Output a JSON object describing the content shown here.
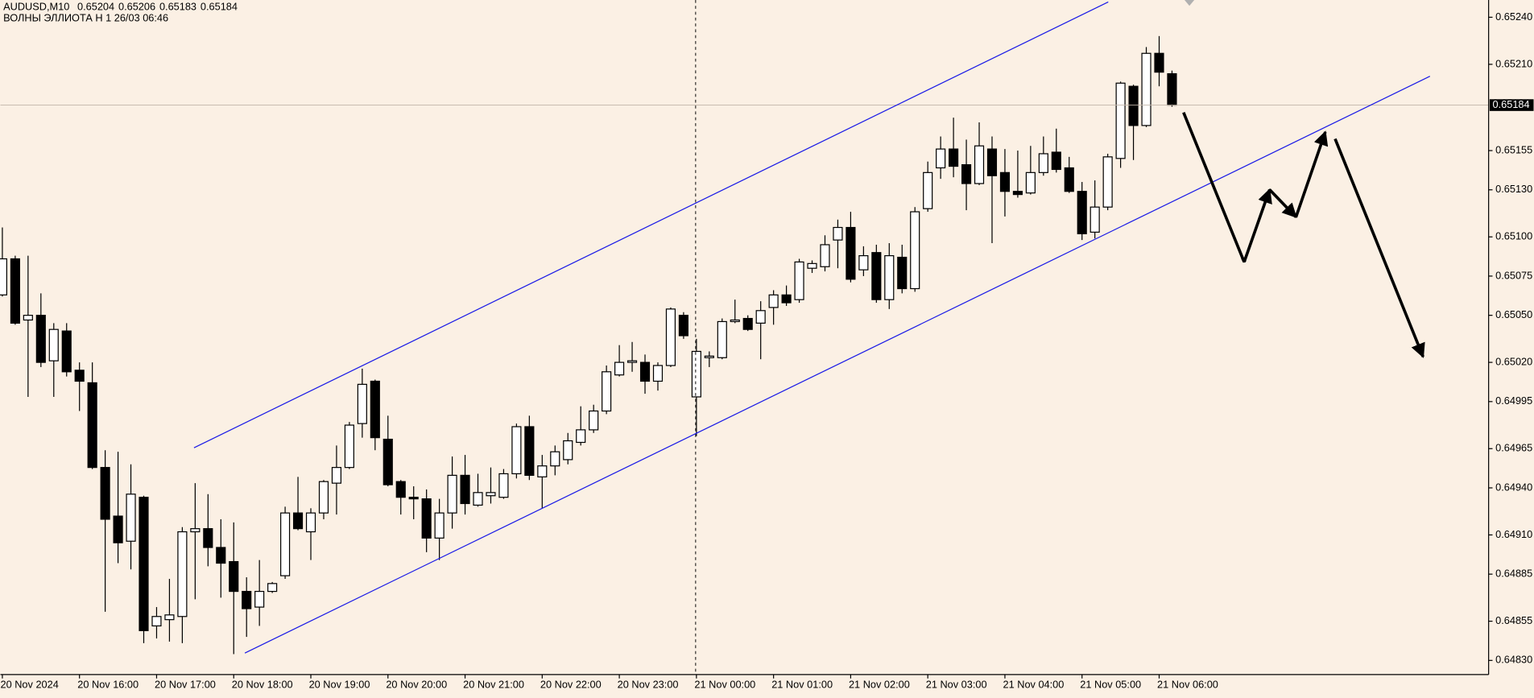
{
  "chart_data": {
    "type": "candlestick",
    "title": "AUDUSD,M10",
    "subtitle": "ВОЛНЫ ЭЛЛИОТА H 1 26/03 06:46",
    "categories": [
      "20 Nov 2024",
      null,
      null,
      null,
      null,
      null,
      "20 Nov 16:00",
      null,
      null,
      null,
      null,
      null,
      "20 Nov 17:00",
      null,
      null,
      null,
      null,
      null,
      "20 Nov 18:00",
      null,
      null,
      null,
      null,
      null,
      "20 Nov 19:00",
      null,
      null,
      null,
      null,
      null,
      "20 Nov 20:00",
      null,
      null,
      null,
      null,
      null,
      "20 Nov 21:00",
      null,
      null,
      null,
      null,
      null,
      "20 Nov 22:00",
      null,
      null,
      null,
      null,
      null,
      "20 Nov 23:00",
      null,
      null,
      null,
      null,
      null,
      "21 Nov 00:00",
      null,
      null,
      null,
      null,
      null,
      "21 Nov 01:00",
      null,
      null,
      null,
      null,
      null,
      "21 Nov 02:00",
      null,
      null,
      null,
      null,
      null,
      "21 Nov 03:00",
      null,
      null,
      null,
      null,
      null,
      "21 Nov 04:00",
      null,
      null,
      null,
      null,
      null,
      "21 Nov 05:00",
      null,
      null,
      null,
      null,
      null,
      "21 Nov 06:00",
      null
    ],
    "open": [
      0.65063,
      0.65086,
      0.65047,
      0.6505,
      0.65021,
      0.6504,
      0.65015,
      0.65007,
      0.64953,
      0.64922,
      0.64906,
      0.64934,
      0.64852,
      0.64856,
      0.64858,
      0.64912,
      0.64914,
      0.64902,
      0.64893,
      0.64874,
      0.64864,
      0.64874,
      0.64884,
      0.64924,
      0.64912,
      0.64924,
      0.64943,
      0.64953,
      0.64981,
      0.65008,
      0.64971,
      0.64944,
      0.64934,
      0.64933,
      0.64908,
      0.64924,
      0.64948,
      0.64929,
      0.64935,
      0.64934,
      0.64949,
      0.64979,
      0.64947,
      0.64954,
      0.64958,
      0.64969,
      0.64977,
      0.64989,
      0.65012,
      0.6502,
      0.6502,
      0.65008,
      0.65018,
      0.6505,
      0.64998,
      0.65023,
      0.65023,
      0.65046,
      0.65048,
      0.65045,
      0.65055,
      0.65063,
      0.6506,
      0.6508,
      0.65081,
      0.65098,
      0.65106,
      0.65079,
      0.6509,
      0.6506,
      0.65087,
      0.65067,
      0.65118,
      0.65144,
      0.65156,
      0.65146,
      0.65134,
      0.65156,
      0.65141,
      0.65129,
      0.65128,
      0.65141,
      0.65154,
      0.65144,
      0.65129,
      0.65103,
      0.65119,
      0.6515,
      0.65196,
      0.65171,
      0.65217,
      0.65204
    ],
    "high": [
      0.65106,
      0.65088,
      0.65088,
      0.65064,
      0.65045,
      0.65045,
      0.6502,
      0.6502,
      0.64964,
      0.64963,
      0.64955,
      0.64935,
      0.64864,
      0.64882,
      0.64915,
      0.64943,
      0.64936,
      0.6492,
      0.64918,
      0.64883,
      0.64894,
      0.6488,
      0.64928,
      0.64947,
      0.64927,
      0.64945,
      0.64967,
      0.64982,
      0.65016,
      0.65009,
      0.64986,
      0.64945,
      0.64941,
      0.64939,
      0.64933,
      0.6496,
      0.64961,
      0.64949,
      0.64953,
      0.64952,
      0.64981,
      0.64986,
      0.64961,
      0.64967,
      0.64975,
      0.64992,
      0.64993,
      0.65018,
      0.65031,
      0.65033,
      0.65025,
      0.6502,
      0.65055,
      0.65052,
      0.65035,
      0.65027,
      0.65048,
      0.6506,
      0.6505,
      0.65059,
      0.65066,
      0.65069,
      0.65086,
      0.65085,
      0.65101,
      0.65111,
      0.65116,
      0.65094,
      0.65095,
      0.65096,
      0.65095,
      0.65119,
      0.65148,
      0.65164,
      0.65176,
      0.65162,
      0.65173,
      0.65164,
      0.65156,
      0.65155,
      0.65158,
      0.65164,
      0.65169,
      0.65151,
      0.65135,
      0.65136,
      0.65153,
      0.65199,
      0.65197,
      0.65221,
      0.65228,
      0.65206
    ],
    "low": [
      0.65062,
      0.65044,
      0.64998,
      0.65017,
      0.64998,
      0.65011,
      0.64989,
      0.64952,
      0.64861,
      0.64892,
      0.64888,
      0.64841,
      0.64844,
      0.64842,
      0.64841,
      0.64869,
      0.6489,
      0.6487,
      0.64834,
      0.64845,
      0.64852,
      0.64873,
      0.64882,
      0.64913,
      0.64894,
      0.6492,
      0.64923,
      0.64952,
      0.64972,
      0.64964,
      0.64941,
      0.64923,
      0.6492,
      0.64899,
      0.64894,
      0.64914,
      0.64923,
      0.64928,
      0.6493,
      0.64933,
      0.64946,
      0.64945,
      0.64927,
      0.64948,
      0.64955,
      0.64967,
      0.64975,
      0.64987,
      0.65011,
      0.65014,
      0.65,
      0.65002,
      0.65017,
      0.65035,
      0.64973,
      0.65017,
      0.65022,
      0.65045,
      0.6504,
      0.65022,
      0.65044,
      0.65056,
      0.65058,
      0.65077,
      0.65078,
      0.6508,
      0.65071,
      0.65075,
      0.65058,
      0.65054,
      0.65064,
      0.65065,
      0.65116,
      0.65137,
      0.65138,
      0.65117,
      0.65133,
      0.65096,
      0.65113,
      0.65125,
      0.65127,
      0.65139,
      0.65141,
      0.65128,
      0.65098,
      0.65099,
      0.65117,
      0.65144,
      0.65149,
      0.6517,
      0.65196,
      0.65183
    ],
    "close": [
      0.65086,
      0.65045,
      0.6505,
      0.6502,
      0.65041,
      0.65014,
      0.65008,
      0.64953,
      0.6492,
      0.64905,
      0.64936,
      0.64849,
      0.64858,
      0.64859,
      0.64912,
      0.64914,
      0.64902,
      0.64892,
      0.64874,
      0.64863,
      0.64874,
      0.64879,
      0.64924,
      0.64914,
      0.64924,
      0.64944,
      0.64953,
      0.6498,
      0.65006,
      0.64972,
      0.64942,
      0.64934,
      0.64933,
      0.64908,
      0.64924,
      0.64948,
      0.6493,
      0.64937,
      0.64937,
      0.64949,
      0.64979,
      0.64948,
      0.64954,
      0.64963,
      0.6497,
      0.64977,
      0.64989,
      0.65014,
      0.6502,
      0.65021,
      0.65008,
      0.65018,
      0.65054,
      0.65037,
      0.65027,
      0.65024,
      0.65046,
      0.65047,
      0.65041,
      0.65053,
      0.65063,
      0.65058,
      0.65084,
      0.65083,
      0.65095,
      0.65106,
      0.65073,
      0.65088,
      0.6506,
      0.65088,
      0.65067,
      0.65116,
      0.65141,
      0.65156,
      0.65145,
      0.65134,
      0.65158,
      0.65139,
      0.65129,
      0.65127,
      0.65141,
      0.65153,
      0.65143,
      0.65129,
      0.65102,
      0.65119,
      0.65151,
      0.65198,
      0.65171,
      0.65217,
      0.65205,
      0.65184
    ],
    "up_color": "#ffffff",
    "down_color": "#000000",
    "ylim": [
      0.64821,
      0.65251
    ],
    "yticks": [
      {
        "value": 0.6524,
        "label": "0.65240"
      },
      {
        "value": 0.6521,
        "label": "0.65210"
      },
      0.65155,
      {
        "value": 0.6513,
        "label": "0.65130"
      },
      {
        "value": 0.651,
        "label": "0.65100"
      },
      0.65075,
      {
        "value": 0.6505,
        "label": "0.65050"
      },
      {
        "value": 0.6502,
        "label": "0.65020"
      },
      0.64995,
      0.64965,
      {
        "value": 0.6494,
        "label": "0.64940"
      },
      {
        "value": 0.6491,
        "label": "0.64910"
      },
      0.64885,
      0.64855,
      {
        "value": 0.6483,
        "label": "0.64830"
      }
    ],
    "grid": false
  }
}
